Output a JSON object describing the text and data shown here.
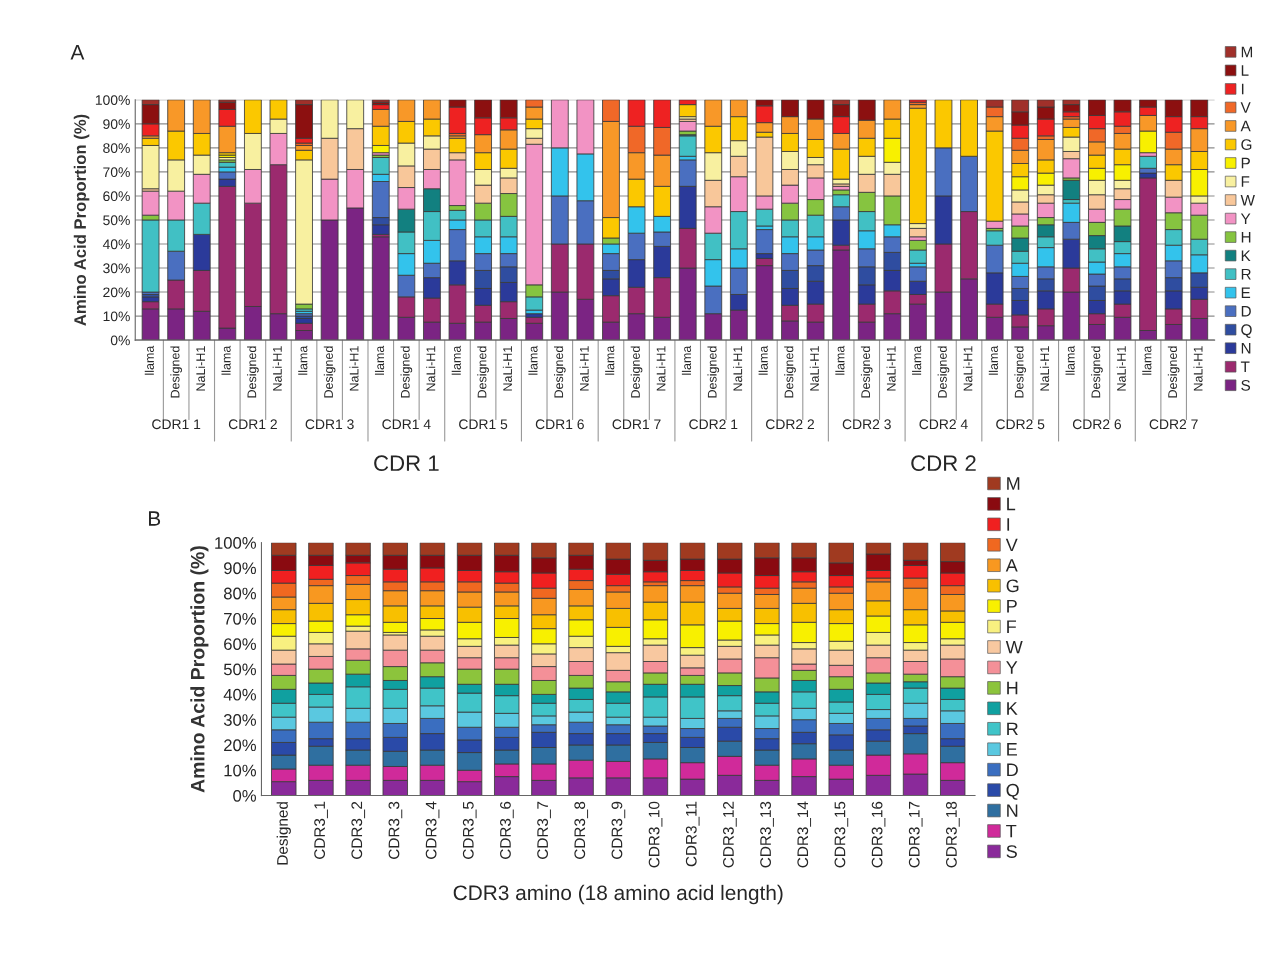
{
  "chart_data": [
    {
      "type": "bar",
      "title": "A",
      "ylabel": "Amino Acid Proportion (%)",
      "stacked": true,
      "grid": "y",
      "legend": "right",
      "ylim": [
        0,
        100
      ],
      "yticks": [
        {
          "value": 0,
          "label": "0%"
        },
        {
          "value": 10,
          "label": "10%"
        },
        {
          "value": 20,
          "label": "20%"
        },
        {
          "value": 30,
          "label": "30%"
        },
        {
          "value": 40,
          "label": "40%"
        },
        {
          "value": 50,
          "label": "50%"
        },
        {
          "value": 60,
          "label": "60%"
        },
        {
          "value": 70,
          "label": "70%"
        },
        {
          "value": 80,
          "label": "80%"
        },
        {
          "value": 90,
          "label": "90%"
        },
        {
          "value": 100,
          "label": "100%"
        }
      ],
      "categories": [
        "llama",
        "Designed",
        "NaLi-H1",
        "llama",
        "Designed",
        "NaLi-H1",
        "llama",
        "Designed",
        "NaLi-H1",
        "llama",
        "Designed",
        "NaLi-H1",
        "llama",
        "Designed",
        "NaLi-H1",
        "llama",
        "Designed",
        "NaLi-H1",
        "llama",
        "Designed",
        "NaLi-H1",
        "llama",
        "Designed",
        "NaLi-H1",
        "llama",
        "Designed",
        "NaLi-H1",
        "llama",
        "Designed",
        "NaLi-H1",
        "llama",
        "Designed",
        "NaLi-H1",
        "llama",
        "Designed",
        "NaLi-H1",
        "llama",
        "Designed",
        "NaLi-H1",
        "llama",
        "Designed",
        "NaLi-H1"
      ],
      "annotations": [
        "CDR1 1",
        "CDR1 2",
        "CDR1 3",
        "CDR1 4",
        "CDR1 5",
        "CDR1 6",
        "CDR1 7",
        "CDR2 1",
        "CDR2 2",
        "CDR2 3",
        "CDR2 4",
        "CDR2 5",
        "CDR2 6",
        "CDR2 7",
        "CDR 1",
        "CDR 2"
      ],
      "series": [
        {
          "name": "S",
          "color": "#7b2483",
          "values": [
            13,
            13,
            12,
            5,
            14,
            11,
            4,
            50,
            55,
            43,
            9.5,
            7.5,
            7,
            7.5,
            9,
            7,
            20,
            17,
            7.5,
            11,
            9.5,
            30,
            11,
            12.5,
            31,
            8,
            7.5,
            37.5,
            7.5,
            11,
            15,
            20,
            25.5,
            9.5,
            5.5,
            6,
            20,
            6.5,
            9.5,
            4,
            6.5,
            9
          ]
        },
        {
          "name": "T",
          "color": "#9b2a6e",
          "values": [
            3,
            12,
            17,
            59,
            43,
            62,
            3,
            0,
            0,
            1,
            8.5,
            10,
            16,
            7,
            7,
            2.5,
            20,
            23,
            11,
            11,
            16.5,
            16.5,
            0,
            0,
            3,
            6.5,
            7.5,
            2,
            7.5,
            9.5,
            4,
            20,
            28,
            5.5,
            5,
            7,
            10,
            4.5,
            5.5,
            63.5,
            6.5,
            8
          ]
        },
        {
          "name": "N",
          "color": "#2b3a9a",
          "values": [
            2,
            0,
            15,
            3,
            0,
            0,
            2,
            0,
            0,
            4,
            0,
            8.5,
            10,
            7,
            8,
            1.5,
            0,
            0,
            7,
            11.5,
            13,
            17.5,
            0,
            6.5,
            2,
            7,
            9.5,
            10.5,
            8,
            8.5,
            5.5,
            20,
            0,
            13,
            6,
            7.5,
            12,
            5.5,
            5.5,
            2,
            7.5,
            5
          ]
        },
        {
          "name": "Q",
          "color": "#2f4da0",
          "values": [
            1,
            0,
            0,
            0,
            0,
            0,
            1,
            0,
            0,
            3,
            0,
            0,
            0,
            7.5,
            6.5,
            0,
            0,
            0,
            3.5,
            0,
            0,
            0,
            0,
            0,
            0,
            7.5,
            6.5,
            0,
            7.5,
            7.5,
            0,
            0,
            0,
            0,
            5,
            5,
            0,
            6,
            5,
            0,
            5.5,
            6
          ]
        },
        {
          "name": "D",
          "color": "#4a6fc0",
          "values": [
            1,
            12,
            0,
            3,
            0,
            0,
            1,
            0,
            0,
            15,
            9,
            6,
            13,
            7,
            5.5,
            0,
            20,
            18,
            7,
            11,
            6,
            11,
            11.5,
            11,
            10,
            7,
            6.5,
            5.5,
            7.5,
            6.5,
            6,
            20,
            23,
            11.5,
            5,
            5,
            7,
            5,
            5,
            2,
            7,
            0
          ]
        },
        {
          "name": "E",
          "color": "#33c3ec",
          "values": [
            0,
            0,
            0,
            2,
            0,
            0,
            1,
            0,
            0,
            3,
            9,
            9.5,
            4,
            7,
            7,
            1.5,
            20,
            19.5,
            4,
            11,
            6.5,
            1.5,
            11,
            8,
            1.5,
            7,
            5.5,
            0,
            7.5,
            5,
            1.5,
            0,
            0,
            0,
            5.5,
            8,
            8,
            5,
            5.5,
            0,
            6.5,
            7.5
          ]
        },
        {
          "name": "R",
          "color": "#41c0c4",
          "values": [
            30,
            13,
            13,
            2,
            0,
            0,
            1,
            0,
            0,
            7,
            9,
            12,
            4,
            7,
            8.5,
            5.5,
            0,
            0,
            0,
            0,
            0,
            8.5,
            11,
            15.5,
            7,
            7,
            9,
            5,
            8,
            0,
            5.5,
            0,
            0,
            6,
            5,
            4.5,
            1.5,
            5.5,
            5,
            5,
            6.5,
            6.5
          ]
        },
        {
          "name": "K",
          "color": "#128080",
          "values": [
            0,
            0,
            0,
            0,
            0,
            0,
            0,
            0,
            0,
            0,
            9.5,
            9.5,
            0,
            0,
            0,
            0,
            0,
            0,
            0,
            0,
            0,
            0.5,
            0,
            0,
            0,
            0,
            0,
            0,
            0,
            0,
            0,
            0,
            0,
            0,
            5.5,
            5,
            8,
            5.5,
            6.5,
            0,
            0,
            0
          ]
        },
        {
          "name": "H",
          "color": "#86c440",
          "values": [
            2,
            0,
            0,
            1,
            0,
            0,
            2,
            0,
            0,
            1,
            0,
            0,
            2,
            7,
            9.5,
            5,
            0,
            0,
            2.5,
            0,
            0,
            1.5,
            0,
            0,
            0,
            7,
            6.5,
            2,
            8,
            12,
            4,
            0,
            0,
            1,
            5,
            3,
            1,
            5.5,
            7,
            0,
            7,
            10
          ]
        },
        {
          "name": "Y",
          "color": "#f293c4",
          "values": [
            10,
            12,
            12,
            0,
            14,
            13,
            0,
            17,
            16,
            1,
            9,
            8,
            19,
            0,
            0,
            58.5,
            20,
            22.5,
            0,
            0,
            0,
            4,
            11,
            14.5,
            5.5,
            7.5,
            9,
            1.5,
            0,
            0,
            1.5,
            0,
            0,
            3,
            5,
            6,
            8,
            5.5,
            4,
            1.5,
            6.5,
            5
          ]
        },
        {
          "name": "W",
          "color": "#f8c79a",
          "values": [
            1,
            0,
            0,
            0,
            0,
            0,
            0,
            17,
            17,
            0,
            9,
            8.5,
            3,
            7.5,
            6.5,
            2.5,
            0,
            0,
            0,
            0,
            0,
            1,
            11,
            8.5,
            24.5,
            6.5,
            5.5,
            1,
            7.5,
            9,
            3.5,
            0,
            0,
            0,
            5,
            3.5,
            3,
            6,
            4.5,
            0,
            7,
            0
          ]
        },
        {
          "name": "F",
          "color": "#f8f0a0",
          "values": [
            18,
            13,
            8,
            1,
            15,
            6,
            60,
            16,
            12,
            0,
            9.5,
            5.5,
            0,
            6.5,
            4,
            4,
            0,
            0,
            0,
            0,
            0,
            1,
            11.5,
            6.5,
            0,
            7.5,
            3,
            2,
            7.5,
            5,
            2,
            0,
            0,
            0,
            5,
            4,
            6,
            6,
            3.5,
            0,
            0,
            3
          ]
        },
        {
          "name": "P",
          "color": "#f8f000",
          "values": [
            0,
            0,
            0,
            1,
            0,
            0,
            0,
            0,
            0,
            3,
            0,
            0,
            0,
            0,
            0,
            0,
            0,
            0,
            0,
            0,
            0,
            0,
            0,
            0,
            0,
            0,
            0,
            0,
            0,
            10,
            0,
            0,
            0,
            0,
            5.5,
            5,
            0,
            5,
            6.5,
            9,
            0,
            11
          ]
        },
        {
          "name": "G",
          "color": "#fbc800",
          "values": [
            3,
            12,
            9,
            1,
            14,
            8,
            4,
            0,
            0,
            8,
            9,
            7,
            6,
            7,
            8,
            4,
            0,
            0,
            8.5,
            11.5,
            12.5,
            5,
            11,
            10,
            2,
            7.5,
            7.5,
            12.5,
            7.5,
            8,
            48,
            20,
            23.5,
            37.5,
            5.5,
            5.5,
            4,
            5.5,
            6.5,
            0,
            6.5,
            7.5
          ]
        },
        {
          "name": "A",
          "color": "#f89828",
          "values": [
            1,
            13,
            14,
            11,
            0,
            0,
            2,
            0,
            0,
            7,
            9,
            8,
            1,
            7.5,
            8,
            5,
            0,
            0,
            40,
            11,
            13,
            0,
            11,
            7,
            4,
            7,
            8.5,
            6.5,
            7.5,
            8,
            1.5,
            0,
            0,
            6,
            5.5,
            8.5,
            3.5,
            5.5,
            6.5,
            6.5,
            6.5,
            9.5
          ]
        },
        {
          "name": "V",
          "color": "#f06828",
          "values": [
            0,
            0,
            0,
            0,
            0,
            0,
            1,
            0,
            0,
            0,
            0,
            0,
            1,
            0,
            0,
            3,
            0,
            0,
            9,
            11,
            11.5,
            0,
            0,
            0,
            0,
            0,
            0,
            0,
            0,
            0,
            1,
            0,
            0,
            4,
            5,
            1.5,
            1,
            5.5,
            3,
            0,
            7,
            0
          ]
        },
        {
          "name": "I",
          "color": "#ee2222",
          "values": [
            5,
            0,
            0,
            7,
            0,
            0,
            2,
            0,
            0,
            2,
            0,
            0,
            11,
            7,
            5,
            0,
            0,
            0,
            0,
            11,
            11.5,
            2,
            0,
            0,
            7,
            0,
            0,
            7,
            0,
            0,
            1,
            0,
            0,
            0,
            5.5,
            7,
            2,
            5.5,
            6,
            3.5,
            6.5,
            5
          ]
        },
        {
          "name": "L",
          "color": "#8c1010",
          "values": [
            8,
            0,
            0,
            3,
            0,
            0,
            14,
            0,
            0,
            1,
            0,
            0,
            3,
            7.5,
            7.5,
            0,
            0,
            0,
            0,
            0,
            0,
            0,
            0,
            0,
            2.5,
            7,
            8,
            5,
            8.5,
            0,
            0,
            0,
            0,
            0,
            5.5,
            5,
            3,
            6.5,
            5,
            3,
            7,
            7
          ]
        },
        {
          "name": "M",
          "color": "#a0302a",
          "values": [
            2,
            0,
            0,
            1,
            0,
            0,
            2,
            0,
            0,
            1,
            0,
            0,
            0,
            0,
            0,
            0,
            0,
            0,
            0,
            0,
            0,
            0,
            0,
            0,
            0,
            0,
            0,
            2,
            0,
            0,
            0,
            0,
            0,
            3,
            5,
            3,
            2,
            0,
            0,
            0,
            0,
            0
          ]
        }
      ]
    },
    {
      "type": "bar",
      "title": "B",
      "ylabel": "Amino Acid Proportion (%)",
      "xlabel": "CDR3 amino (18 amino acid length)",
      "stacked": true,
      "legend": "right",
      "ylim": [
        0,
        100
      ],
      "yticks": [
        {
          "value": 0,
          "label": "0%"
        },
        {
          "value": 10,
          "label": "10%"
        },
        {
          "value": 20,
          "label": "20%"
        },
        {
          "value": 30,
          "label": "30%"
        },
        {
          "value": 40,
          "label": "40%"
        },
        {
          "value": 50,
          "label": "50%"
        },
        {
          "value": 60,
          "label": "60%"
        },
        {
          "value": 70,
          "label": "70%"
        },
        {
          "value": 80,
          "label": "80%"
        },
        {
          "value": 90,
          "label": "90%"
        },
        {
          "value": 100,
          "label": "100%"
        }
      ],
      "categories": [
        "Designed",
        "CDR3_1",
        "CDR3_2",
        "CDR3_3",
        "CDR3_4",
        "CDR3_5",
        "CDR3_6",
        "CDR3_7",
        "CDR3_8",
        "CDR3_9",
        "CDR3_10",
        "CDR3_11",
        "CDR3_12",
        "CDR3_13",
        "CDR3_14",
        "CDR3_15",
        "CDR3_16",
        "CDR3_17",
        "CDR3_18"
      ],
      "series": [
        {
          "name": "S",
          "color": "#8a2a9a",
          "values": [
            5.5,
            6,
            6,
            6,
            6,
            5.5,
            7.5,
            6,
            7,
            7,
            7,
            6.5,
            8,
            6,
            7.5,
            6.5,
            8,
            8.5,
            6
          ]
        },
        {
          "name": "T",
          "color": "#d02a9a",
          "values": [
            5,
            6,
            6,
            5.5,
            6,
            4.5,
            5,
            6.5,
            7,
            6.5,
            7.5,
            6.5,
            7.5,
            6,
            7,
            5.5,
            8,
            8,
            7
          ]
        },
        {
          "name": "N",
          "color": "#2f6fa0",
          "values": [
            5.5,
            7.5,
            6,
            6,
            6,
            7,
            5.5,
            6.5,
            6,
            6.5,
            6.5,
            6,
            6,
            6,
            6,
            6,
            5.5,
            8,
            6.5
          ]
        },
        {
          "name": "Q",
          "color": "#2a4aa8",
          "values": [
            5,
            3,
            4.5,
            5.5,
            6.5,
            5,
            5,
            6,
            4.5,
            4.5,
            3.5,
            4,
            5.5,
            4.5,
            4.5,
            6,
            4.5,
            3,
            3
          ]
        },
        {
          "name": "D",
          "color": "#3a6ec0",
          "values": [
            5,
            6.5,
            6.5,
            5.5,
            6,
            5,
            4,
            3,
            4.5,
            3.5,
            3,
            3.5,
            3.5,
            4,
            5,
            4.5,
            4.5,
            3,
            6
          ]
        },
        {
          "name": "E",
          "color": "#5ac8e0",
          "values": [
            5,
            6,
            5.5,
            6,
            5,
            6,
            5.5,
            3.5,
            4,
            3,
            3.5,
            4,
            3,
            5,
            4.5,
            4,
            3.5,
            6,
            5
          ]
        },
        {
          "name": "R",
          "color": "#40c4c8",
          "values": [
            5.5,
            5,
            8.5,
            7.5,
            7,
            7.5,
            7,
            5,
            5,
            5.5,
            8,
            8.5,
            6,
            5,
            6.5,
            4.5,
            6,
            6,
            4.5
          ]
        },
        {
          "name": "K",
          "color": "#10a0a0",
          "values": [
            5.5,
            4.5,
            5,
            3.5,
            4.5,
            3.5,
            4.5,
            3.5,
            4.5,
            4.5,
            5,
            5,
            4,
            4.5,
            4.5,
            5,
            4.5,
            2.5,
            4.5
          ]
        },
        {
          "name": "H",
          "color": "#8cc43c",
          "values": [
            5.5,
            5.5,
            5.5,
            5.5,
            5.5,
            6,
            6,
            5.5,
            5,
            4,
            4.5,
            3.5,
            5,
            5.5,
            4,
            5,
            4,
            3,
            4.5
          ]
        },
        {
          "name": "Y",
          "color": "#f49098",
          "values": [
            4.5,
            5,
            4.5,
            6.5,
            5,
            4.5,
            4.5,
            5.5,
            5.5,
            4.5,
            4.5,
            3,
            5.5,
            8,
            2.5,
            4.5,
            6,
            5,
            7
          ]
        },
        {
          "name": "W",
          "color": "#f8c8a0",
          "values": [
            5.5,
            5,
            7,
            6,
            5.5,
            4.5,
            5,
            5,
            5.5,
            7,
            6.5,
            5,
            5,
            5,
            6,
            6,
            5,
            4.5,
            5.5
          ]
        },
        {
          "name": "F",
          "color": "#f8f080",
          "values": [
            5.5,
            4.5,
            2,
            1,
            2.5,
            3,
            3,
            4,
            4.5,
            2.5,
            2.5,
            3,
            2.5,
            4,
            2.5,
            3.5,
            5,
            3,
            2.5
          ]
        },
        {
          "name": "P",
          "color": "#f8f000",
          "values": [
            5,
            4.5,
            4.5,
            4,
            4.5,
            6.5,
            7.5,
            6,
            6.5,
            7.5,
            7.5,
            9,
            7.5,
            4.5,
            8,
            7,
            6.5,
            7,
            6.5
          ]
        },
        {
          "name": "G",
          "color": "#f8c000",
          "values": [
            5.5,
            7,
            6,
            6.5,
            5,
            6,
            5,
            5.5,
            5.5,
            7.5,
            7,
            9,
            5,
            6,
            7.5,
            5.5,
            6,
            6,
            4.5
          ]
        },
        {
          "name": "A",
          "color": "#f89820",
          "values": [
            5,
            7,
            6,
            6,
            6,
            6,
            5.5,
            6.5,
            6.5,
            6.5,
            6.5,
            6.5,
            6,
            5.5,
            6,
            6.5,
            7.5,
            8.5,
            6.5
          ]
        },
        {
          "name": "V",
          "color": "#f06820",
          "values": [
            5.5,
            2.5,
            3.5,
            3.5,
            3.5,
            4,
            3.5,
            4,
            3.5,
            2.5,
            1.5,
            2,
            2.5,
            2.5,
            2.5,
            2.5,
            1.5,
            4,
            3.5
          ]
        },
        {
          "name": "I",
          "color": "#f02020",
          "values": [
            5,
            5.5,
            5,
            5,
            5.5,
            4.5,
            4.5,
            6,
            4.5,
            4.5,
            4,
            4,
            5.5,
            5,
            4,
            4.5,
            3,
            5,
            5
          ]
        },
        {
          "name": "L",
          "color": "#8a0a10",
          "values": [
            6,
            4,
            3,
            5.5,
            5,
            6,
            6.5,
            6,
            5.5,
            6,
            4.5,
            4.5,
            5.5,
            7,
            5.5,
            5,
            6.5,
            2,
            4.5
          ]
        },
        {
          "name": "M",
          "color": "#a03a20",
          "values": [
            5,
            5,
            5,
            5,
            5,
            5,
            5,
            6,
            5,
            6.5,
            7,
            6.5,
            6.5,
            6,
            6,
            8,
            4.5,
            7,
            7.5
          ]
        }
      ]
    }
  ]
}
